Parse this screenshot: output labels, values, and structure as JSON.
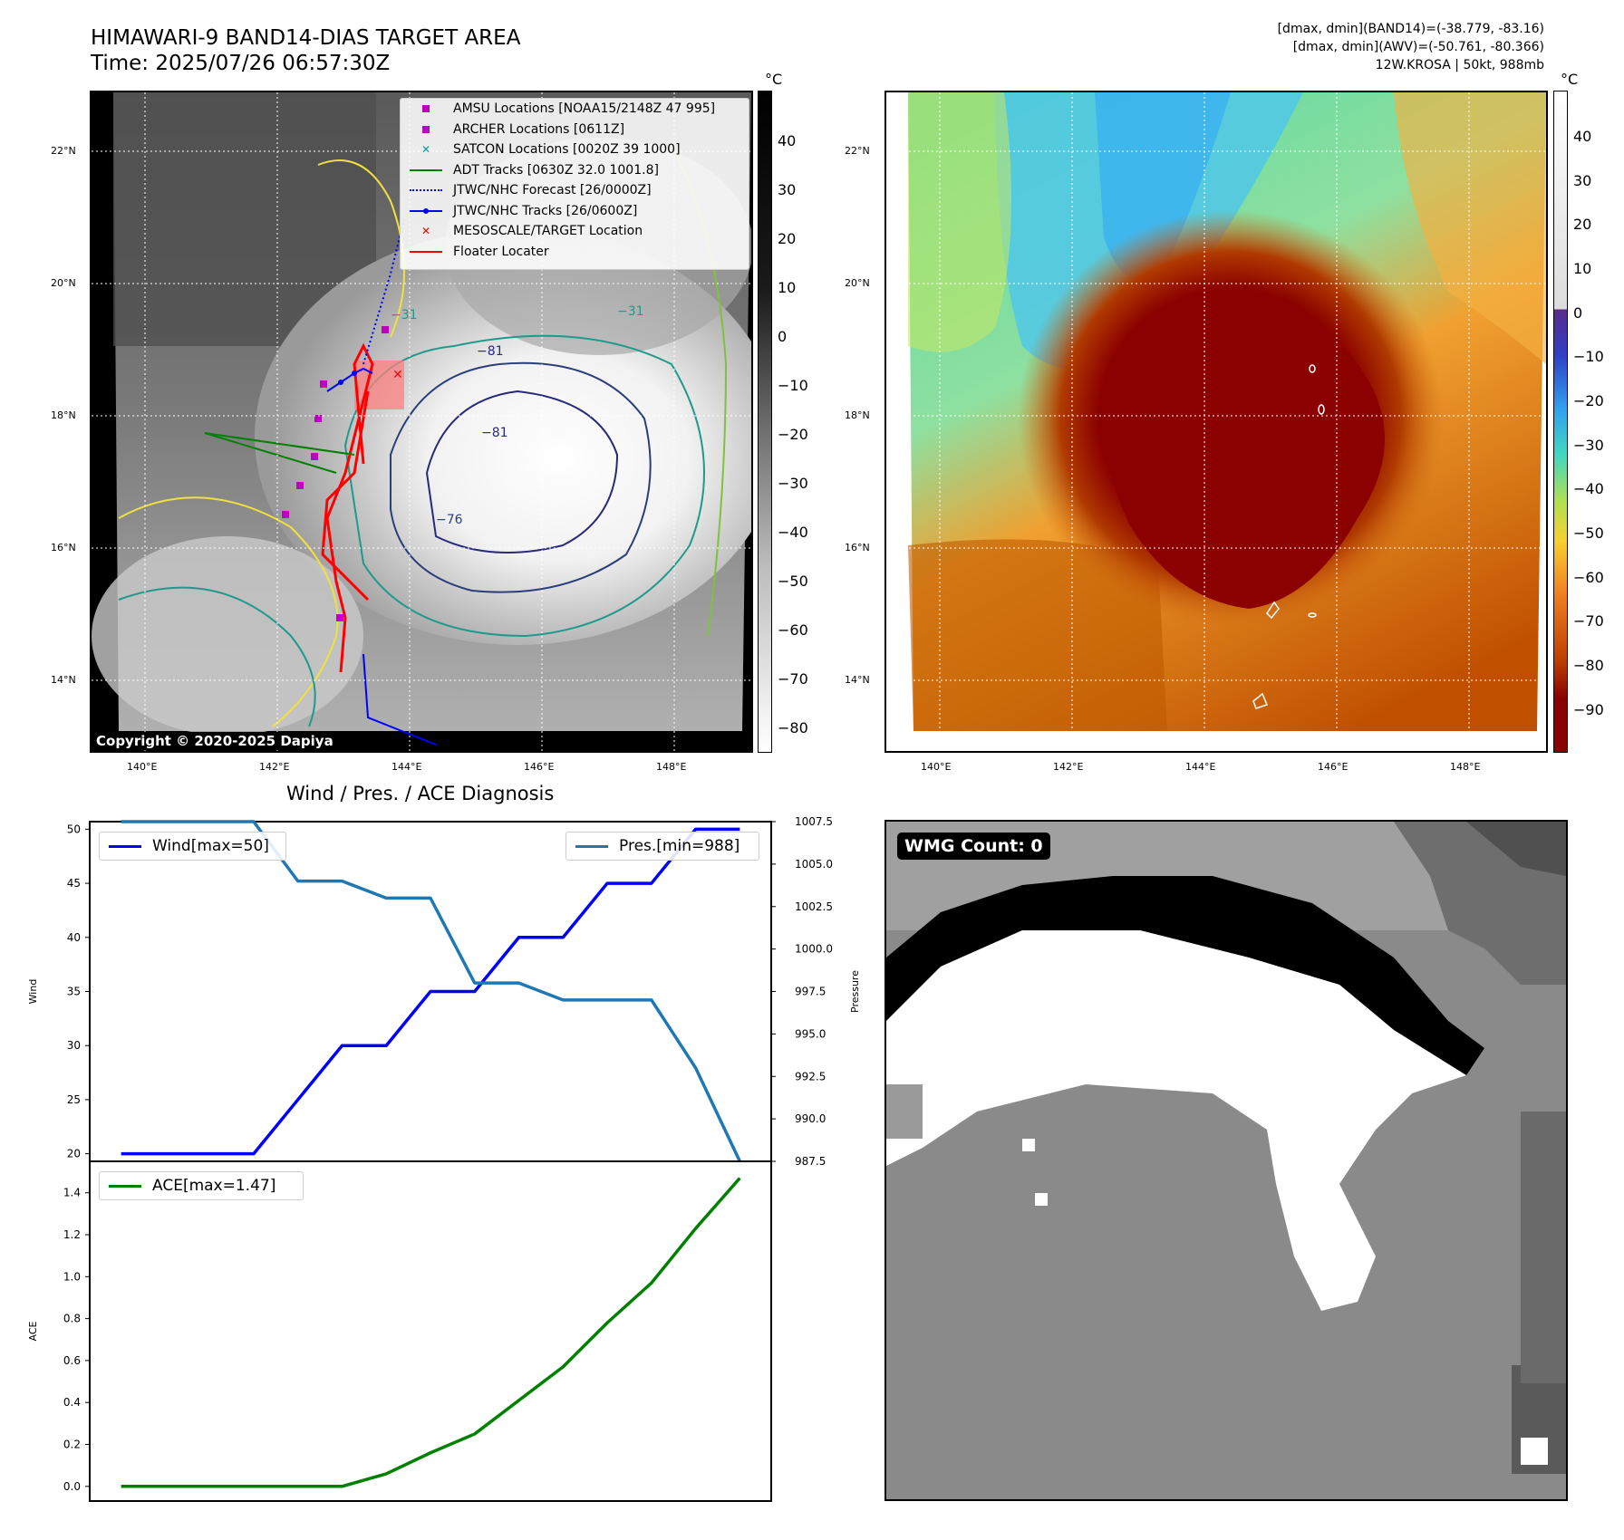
{
  "ir_panel": {
    "title_line1": "HIMAWARI-9 BAND14-DIAS TARGET AREA",
    "title_line2": "Time: 2025/07/26 06:57:30Z",
    "colorbar_unit": "°C",
    "colorbar_ticks": [
      "40",
      "30",
      "20",
      "10",
      "0",
      "−10",
      "−20",
      "−30",
      "−40",
      "−50",
      "−60",
      "−70",
      "−80"
    ],
    "lat_labels": [
      "22°N",
      "20°N",
      "18°N",
      "16°N",
      "14°N"
    ],
    "lon_labels": [
      "140°E",
      "142°E",
      "144°E",
      "146°E",
      "148°E"
    ],
    "contour_labels": [
      "−31",
      "−31",
      "−81",
      "−81",
      "−76"
    ],
    "copyright": "Copyright © 2020-2025 Dapiya",
    "legend": [
      {
        "label": "AMSU Locations [NOAA15/2148Z 47 995]",
        "icon": "square-marker",
        "color": "#bf00bf"
      },
      {
        "label": "ARCHER Locations [0611Z]",
        "icon": "square-marker",
        "color": "#bf00bf"
      },
      {
        "label": "SATCON Locations [0020Z 39 1000]",
        "icon": "x-marker",
        "color": "#00a0a0"
      },
      {
        "label": "ADT Tracks [0630Z 32.0 1001.8]",
        "icon": "solid-line",
        "color": "#008000"
      },
      {
        "label": "JTWC/NHC Forecast [26/0000Z]",
        "icon": "dotted-line",
        "color": "#0000ff"
      },
      {
        "label": "JTWC/NHC Tracks [26/0600Z]",
        "icon": "line-dot",
        "color": "#0000ff"
      },
      {
        "label": "MESOSCALE/TARGET Location",
        "icon": "x-marker",
        "color": "#ff0000"
      },
      {
        "label": "Floater Locater",
        "icon": "solid-line",
        "color": "#ff0000"
      }
    ]
  },
  "awv_panel": {
    "header_line1": "[dmax, dmin](BAND14)=(-38.779, -83.16)",
    "header_line2": "[dmax, dmin](AWV)=(-50.761, -80.366)",
    "header_line3": "12W.KROSA | 50kt, 988mb",
    "colorbar_unit": "°C",
    "colorbar_ticks": [
      "40",
      "30",
      "20",
      "10",
      "0",
      "−10",
      "−20",
      "−30",
      "−40",
      "−50",
      "−60",
      "−70",
      "−80",
      "−90"
    ],
    "lat_labels": [
      "22°N",
      "20°N",
      "18°N",
      "16°N",
      "14°N"
    ],
    "lon_labels": [
      "140°E",
      "142°E",
      "144°E",
      "146°E",
      "148°E"
    ]
  },
  "wmg_panel": {
    "label": "WMG Count: 0"
  },
  "chart_data": [
    {
      "type": "line",
      "title": "Wind / Pres. / ACE Diagnosis",
      "x": [
        0,
        1,
        2,
        3,
        4,
        5,
        6,
        7,
        8,
        9,
        10,
        11,
        12,
        13,
        14
      ],
      "series": [
        {
          "name": "Wind[max=50]",
          "axis": "left",
          "color": "#0000ff",
          "values": [
            20,
            20,
            20,
            20,
            25,
            30,
            30,
            35,
            35,
            40,
            40,
            45,
            45,
            50,
            50
          ]
        },
        {
          "name": "Pres.[min=988]",
          "axis": "right",
          "color": "#1f77b4",
          "values": [
            1007.5,
            1007.5,
            1007.5,
            1007.5,
            1004,
            1004,
            1003,
            1003,
            998,
            998,
            997,
            997,
            997,
            993,
            987.5
          ]
        }
      ],
      "ylabel": "Wind",
      "y2label": "Pressure",
      "ylim": [
        19.3,
        50.7
      ],
      "y2lim": [
        987.5,
        1007.5
      ],
      "yticks": [
        "20",
        "25",
        "30",
        "35",
        "40",
        "45",
        "50"
      ],
      "y2ticks": [
        "987.5",
        "990.0",
        "992.5",
        "995.0",
        "997.5",
        "1000.0",
        "1002.5",
        "1005.0",
        "1007.5"
      ]
    },
    {
      "type": "line",
      "x": [
        0,
        1,
        2,
        3,
        4,
        5,
        6,
        7,
        8,
        9,
        10,
        11,
        12,
        13,
        14
      ],
      "series": [
        {
          "name": "ACE[max=1.47]",
          "color": "#008000",
          "values": [
            0,
            0,
            0,
            0,
            0,
            0,
            0.06,
            0.16,
            0.25,
            0.41,
            0.57,
            0.78,
            0.97,
            1.23,
            1.47
          ]
        }
      ],
      "ylabel": "ACE",
      "ylim": [
        -0.07,
        1.55
      ],
      "yticks": [
        "0.0",
        "0.2",
        "0.4",
        "0.6",
        "0.8",
        "1.0",
        "1.2",
        "1.4"
      ]
    }
  ]
}
